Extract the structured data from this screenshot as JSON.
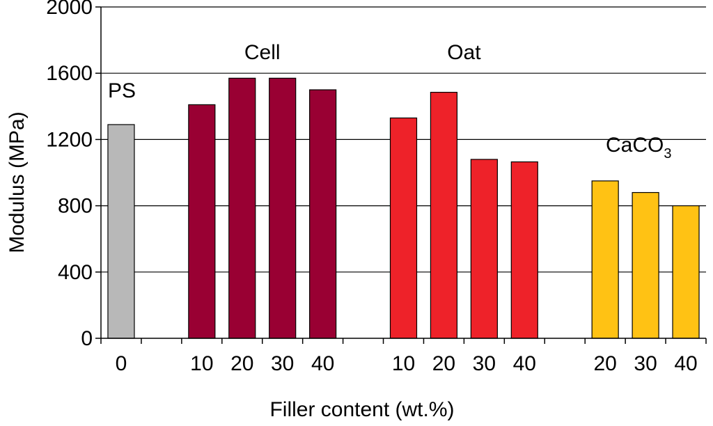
{
  "chart_data": {
    "type": "bar",
    "xlabel": "Filler content (wt.%)",
    "ylabel": "Modulus (MPa)",
    "ylim": [
      0,
      2000
    ],
    "yticks": [
      "0",
      "400",
      "800",
      "1200",
      "1600",
      "2000"
    ],
    "grid": true,
    "categories": [
      "0",
      "10",
      "20",
      "30",
      "40",
      "10",
      "20",
      "30",
      "40",
      "20",
      "30",
      "40"
    ],
    "groups": [
      {
        "label": "PS",
        "color": "#B8B8B8",
        "categories": [
          "0"
        ],
        "values": [
          1290
        ]
      },
      {
        "label": "Cell",
        "color": "#990033",
        "categories": [
          "10",
          "20",
          "30",
          "40"
        ],
        "values": [
          1410,
          1570,
          1570,
          1500
        ]
      },
      {
        "label": "Oat",
        "color": "#EE2229",
        "categories": [
          "10",
          "20",
          "30",
          "40"
        ],
        "values": [
          1330,
          1485,
          1080,
          1065
        ]
      },
      {
        "label": "CaCO",
        "label_subscript": "3",
        "color": "#FFC214",
        "categories": [
          "20",
          "30",
          "40"
        ],
        "values": [
          950,
          880,
          800
        ]
      }
    ]
  }
}
